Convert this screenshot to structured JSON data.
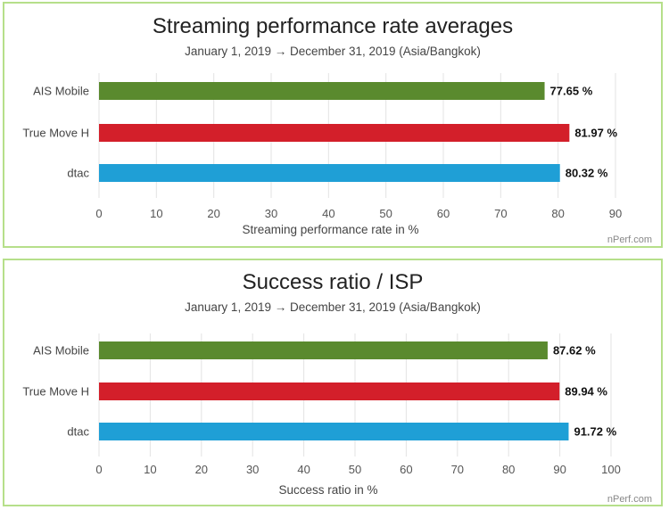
{
  "chart_data": [
    {
      "type": "bar",
      "orientation": "horizontal",
      "title": "Streaming performance rate averages",
      "subtitle": "January 1, 2019 → December 31, 2019 (Asia/Bangkok)",
      "categories": [
        "AIS Mobile",
        "True Move H",
        "dtac"
      ],
      "values": [
        77.65,
        81.97,
        80.32
      ],
      "value_labels": [
        "77.65 %",
        "81.97 %",
        "80.32 %"
      ],
      "colors": [
        "#5a8a2e",
        "#d31f2a",
        "#1f9fd6"
      ],
      "xlabel": "Streaming performance rate in %",
      "ylabel": "",
      "xlim": [
        0,
        90
      ],
      "ticks": [
        0,
        10,
        20,
        30,
        40,
        50,
        60,
        70,
        80,
        90
      ],
      "grid": true,
      "credit": "nPerf.com"
    },
    {
      "type": "bar",
      "orientation": "horizontal",
      "title": "Success ratio / ISP",
      "subtitle": "January 1, 2019 → December 31, 2019 (Asia/Bangkok)",
      "categories": [
        "AIS Mobile",
        "True Move H",
        "dtac"
      ],
      "values": [
        87.62,
        89.94,
        91.72
      ],
      "value_labels": [
        "87.62 %",
        "89.94 %",
        "91.72 %"
      ],
      "colors": [
        "#5a8a2e",
        "#d31f2a",
        "#1f9fd6"
      ],
      "xlabel": "Success ratio in %",
      "ylabel": "",
      "xlim": [
        0,
        100
      ],
      "ticks": [
        0,
        10,
        20,
        30,
        40,
        50,
        60,
        70,
        80,
        90,
        100
      ],
      "grid": true,
      "credit": "nPerf.com"
    }
  ]
}
